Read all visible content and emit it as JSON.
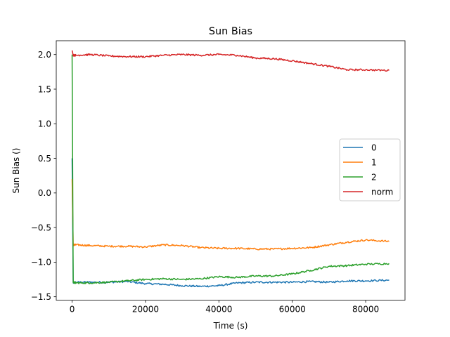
{
  "chart_data": {
    "type": "line",
    "title": "Sun Bias",
    "xlabel": "Time (s)",
    "ylabel": "Sun Bias ()",
    "xlim": [
      -4320,
      90720
    ],
    "ylim": [
      -1.55,
      2.2
    ],
    "xticks": [
      0,
      20000,
      40000,
      60000,
      80000
    ],
    "xtick_labels": [
      "0",
      "20000",
      "40000",
      "60000",
      "80000"
    ],
    "yticks": [
      -1.5,
      -1.0,
      -0.5,
      0.0,
      0.5,
      1.0,
      1.5,
      2.0
    ],
    "ytick_labels": [
      "−1.5",
      "−1.0",
      "−0.5",
      "0.0",
      "0.5",
      "1.0",
      "1.5",
      "2.0"
    ],
    "grid": false,
    "legend_position": "center-right",
    "series": [
      {
        "name": "0",
        "color": "#1f77b4",
        "x": [
          0,
          300,
          1000,
          5000,
          10000,
          15000,
          20000,
          25000,
          30000,
          35000,
          40000,
          45000,
          50000,
          55000,
          60000,
          65000,
          70000,
          75000,
          80000,
          86400
        ],
        "y": [
          0.5,
          -1.3,
          -1.29,
          -1.29,
          -1.29,
          -1.28,
          -1.31,
          -1.32,
          -1.34,
          -1.35,
          -1.34,
          -1.3,
          -1.29,
          -1.29,
          -1.29,
          -1.28,
          -1.29,
          -1.27,
          -1.27,
          -1.26
        ]
      },
      {
        "name": "1",
        "color": "#ff7f0e",
        "x": [
          0,
          300,
          1000,
          5000,
          10000,
          15000,
          20000,
          25000,
          30000,
          35000,
          40000,
          45000,
          50000,
          55000,
          60000,
          65000,
          70000,
          75000,
          80000,
          86400
        ],
        "y": [
          0.2,
          -0.75,
          -0.75,
          -0.76,
          -0.77,
          -0.77,
          -0.78,
          -0.75,
          -0.76,
          -0.79,
          -0.8,
          -0.8,
          -0.81,
          -0.81,
          -0.8,
          -0.79,
          -0.75,
          -0.71,
          -0.68,
          -0.7
        ]
      },
      {
        "name": "2",
        "color": "#2ca02c",
        "x": [
          0,
          300,
          1000,
          5000,
          10000,
          15000,
          20000,
          25000,
          30000,
          35000,
          40000,
          45000,
          50000,
          55000,
          60000,
          65000,
          70000,
          75000,
          80000,
          86400
        ],
        "y": [
          2.0,
          -1.29,
          -1.3,
          -1.3,
          -1.29,
          -1.27,
          -1.25,
          -1.24,
          -1.25,
          -1.24,
          -1.21,
          -1.22,
          -1.2,
          -1.2,
          -1.17,
          -1.12,
          -1.06,
          -1.05,
          -1.03,
          -1.02
        ]
      },
      {
        "name": "norm",
        "color": "#d62728",
        "x": [
          0,
          300,
          1000,
          5000,
          10000,
          15000,
          20000,
          25000,
          30000,
          35000,
          40000,
          45000,
          50000,
          55000,
          60000,
          65000,
          70000,
          75000,
          80000,
          86400
        ],
        "y": [
          2.06,
          1.99,
          1.99,
          2.0,
          1.98,
          1.97,
          1.97,
          1.99,
          2.0,
          1.99,
          2.0,
          1.99,
          1.95,
          1.94,
          1.91,
          1.87,
          1.83,
          1.78,
          1.78,
          1.77
        ]
      }
    ]
  }
}
